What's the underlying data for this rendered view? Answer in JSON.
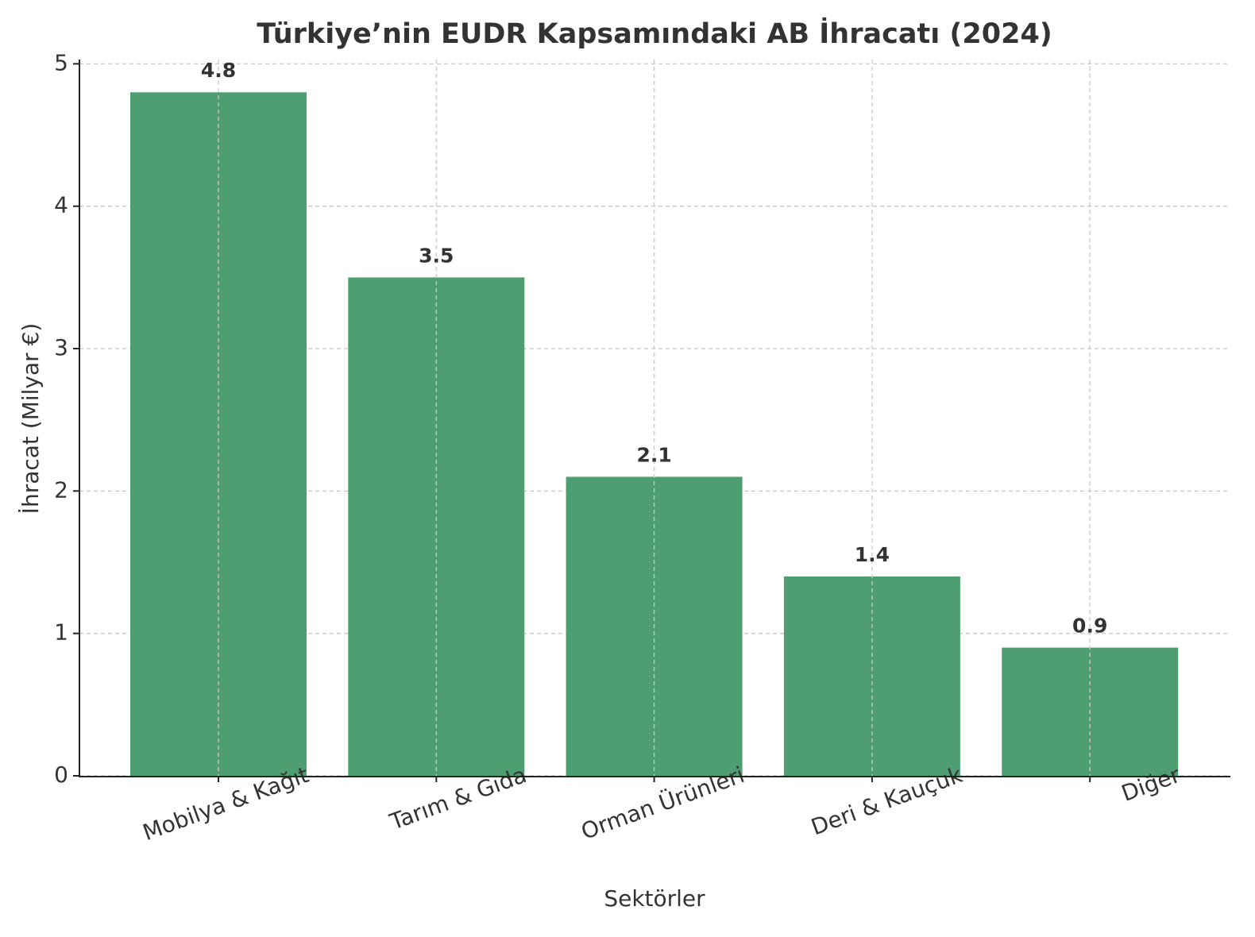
{
  "chart_data": {
    "type": "bar",
    "title": "Türkiye’nin EUDR Kapsamındaki AB İhracatı (2024)",
    "x_label": "Sektörler",
    "y_label": "İhracat (Milyar €)",
    "categories": [
      "Mobilya & Kağıt",
      "Tarım & Gıda",
      "Orman Ürünleri",
      "Deri & Kauçuk",
      "Diğer"
    ],
    "values": [
      4.8,
      3.5,
      2.1,
      1.4,
      0.9
    ],
    "color": "#4f9e71",
    "ylim": [
      0,
      5.03
    ],
    "yticks": [
      0,
      1,
      2,
      3,
      4,
      5
    ],
    "grid": true
  }
}
